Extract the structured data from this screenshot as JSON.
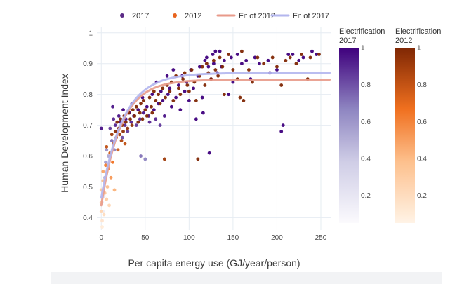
{
  "chart_data": {
    "type": "scatter",
    "xlabel": "Per capita energy use (GJ/year/person)",
    "ylabel": "Human Development Index",
    "xlim": [
      -5,
      262
    ],
    "ylim": [
      0.36,
      1.02
    ],
    "xticks": [
      0,
      50,
      100,
      150,
      200,
      250
    ],
    "yticks": [
      0.4,
      0.5,
      0.6,
      0.7,
      0.8,
      0.9,
      1.0
    ],
    "ytick_labels": [
      "0.4",
      "0.5",
      "0.6",
      "0.7",
      "0.8",
      "0.9",
      "1"
    ],
    "grid": true,
    "legend": {
      "placement": "top",
      "items": [
        {
          "label": "2017",
          "kind": "marker",
          "color": "#5b2a86"
        },
        {
          "label": "2012",
          "kind": "marker",
          "color": "#e8641e"
        },
        {
          "label": "Fit of 2012",
          "kind": "line",
          "color": "#e89a8a"
        },
        {
          "label": "Fit of 2017",
          "kind": "line",
          "color": "#b3b6ee"
        }
      ]
    },
    "colorbars": [
      {
        "title_lines": [
          "Electrification",
          "2017"
        ],
        "range": [
          0.05,
          1
        ],
        "ticks": [
          0.2,
          0.4,
          0.6,
          0.8,
          1
        ],
        "tick_labels": [
          "0.2",
          "0.4",
          "0.6",
          "0.8",
          "1"
        ],
        "colorscale": "Purples"
      },
      {
        "title_lines": [
          "Electrification",
          "2012"
        ],
        "range": [
          0.05,
          1
        ],
        "ticks": [
          0.2,
          0.4,
          0.6,
          0.8,
          1
        ],
        "tick_labels": [
          "0.2",
          "0.4",
          "0.6",
          "0.8",
          "1"
        ],
        "colorscale": "Oranges"
      }
    ],
    "fits": [
      {
        "name": "Fit of 2012",
        "color": "#e89a8a",
        "a": 0.848,
        "b": 0.408,
        "c": 0.045
      },
      {
        "name": "Fit of 2017",
        "color": "#b3b6ee",
        "a": 0.87,
        "b": 0.405,
        "c": 0.04
      }
    ],
    "series": [
      {
        "name": "2017",
        "colorscale": "Purples",
        "points": [
          [
            0,
            0.69,
            0.95
          ],
          [
            1,
            0.45,
            0.15
          ],
          [
            2,
            0.42,
            0.1
          ],
          [
            3,
            0.47,
            0.2
          ],
          [
            4,
            0.53,
            0.45
          ],
          [
            5,
            0.58,
            0.55
          ],
          [
            6,
            0.62,
            0.6
          ],
          [
            8,
            0.6,
            0.5
          ],
          [
            10,
            0.69,
            0.85
          ],
          [
            12,
            0.65,
            0.7
          ],
          [
            13,
            0.76,
            0.95
          ],
          [
            14,
            0.72,
            0.9
          ],
          [
            15,
            0.62,
            0.65
          ],
          [
            16,
            0.7,
            0.9
          ],
          [
            18,
            0.68,
            0.85
          ],
          [
            20,
            0.73,
            0.95
          ],
          [
            22,
            0.71,
            0.95
          ],
          [
            24,
            0.66,
            0.8
          ],
          [
            25,
            0.75,
            1.0
          ],
          [
            27,
            0.7,
            0.9
          ],
          [
            28,
            0.72,
            0.95
          ],
          [
            30,
            0.68,
            0.85
          ],
          [
            32,
            0.74,
            1.0
          ],
          [
            34,
            0.71,
            0.9
          ],
          [
            35,
            0.77,
            1.0
          ],
          [
            37,
            0.73,
            0.95
          ],
          [
            40,
            0.7,
            0.85
          ],
          [
            42,
            0.75,
            1.0
          ],
          [
            44,
            0.72,
            0.9
          ],
          [
            45,
            0.6,
            0.7
          ],
          [
            47,
            0.79,
            1.0
          ],
          [
            48,
            0.74,
            0.95
          ],
          [
            50,
            0.59,
            0.65
          ],
          [
            52,
            0.76,
            1.0
          ],
          [
            54,
            0.73,
            0.95
          ],
          [
            55,
            0.71,
            0.9
          ],
          [
            58,
            0.8,
            1.0
          ],
          [
            60,
            0.75,
            1.0
          ],
          [
            62,
            0.72,
            0.9
          ],
          [
            63,
            0.84,
            1.0
          ],
          [
            65,
            0.77,
            1.0
          ],
          [
            67,
            0.7,
            0.85
          ],
          [
            68,
            0.81,
            1.0
          ],
          [
            70,
            0.78,
            1.0
          ],
          [
            72,
            0.73,
            0.95
          ],
          [
            75,
            0.86,
            1.0
          ],
          [
            76,
            0.8,
            1.0
          ],
          [
            78,
            0.82,
            1.0
          ],
          [
            80,
            0.76,
            1.0
          ],
          [
            82,
            0.88,
            1.0
          ],
          [
            85,
            0.79,
            1.0
          ],
          [
            88,
            0.83,
            1.0
          ],
          [
            90,
            0.75,
            1.0
          ],
          [
            92,
            0.86,
            1.0
          ],
          [
            95,
            0.81,
            1.0
          ],
          [
            97,
            0.84,
            1.0
          ],
          [
            100,
            0.78,
            1.0
          ],
          [
            102,
            0.88,
            1.0
          ],
          [
            105,
            0.82,
            1.0
          ],
          [
            108,
            0.72,
            1.0
          ],
          [
            110,
            0.86,
            1.0
          ],
          [
            112,
            0.89,
            1.0
          ],
          [
            115,
            0.79,
            1.0
          ],
          [
            116,
            0.74,
            1.0
          ],
          [
            118,
            0.91,
            1.0
          ],
          [
            120,
            0.92,
            1.0
          ],
          [
            122,
            0.89,
            1.0
          ],
          [
            123,
            0.61,
            1.0
          ],
          [
            125,
            0.85,
            1.0
          ],
          [
            127,
            0.93,
            1.0
          ],
          [
            128,
            0.9,
            1.0
          ],
          [
            130,
            0.94,
            1.0
          ],
          [
            132,
            0.87,
            1.0
          ],
          [
            135,
            0.94,
            1.0
          ],
          [
            137,
            0.89,
            1.0
          ],
          [
            140,
            0.91,
            1.0
          ],
          [
            145,
            0.8,
            1.0
          ],
          [
            148,
            0.92,
            1.0
          ],
          [
            150,
            0.84,
            1.0
          ],
          [
            155,
            0.93,
            1.0
          ],
          [
            160,
            0.9,
            1.0
          ],
          [
            165,
            0.91,
            1.0
          ],
          [
            170,
            0.85,
            1.0
          ],
          [
            175,
            0.92,
            1.0
          ],
          [
            180,
            0.9,
            1.0
          ],
          [
            190,
            0.91,
            1.0
          ],
          [
            192,
            0.87,
            1.0
          ],
          [
            200,
            0.88,
            1.0
          ],
          [
            205,
            0.68,
            1.0
          ],
          [
            207,
            0.7,
            1.0
          ],
          [
            213,
            0.93,
            1.0
          ],
          [
            218,
            0.93,
            1.0
          ],
          [
            225,
            0.91,
            1.0
          ],
          [
            230,
            0.92,
            1.0
          ],
          [
            240,
            0.94,
            1.0
          ],
          [
            245,
            0.93,
            1.0
          ]
        ]
      },
      {
        "name": "2012",
        "colorscale": "Oranges",
        "points": [
          [
            0,
            0.42,
            0.2
          ],
          [
            0,
            0.45,
            0.25
          ],
          [
            0,
            0.49,
            0.3
          ],
          [
            1,
            0.39,
            0.1
          ],
          [
            1,
            0.37,
            0.05
          ],
          [
            2,
            0.52,
            0.35
          ],
          [
            2,
            0.55,
            0.45
          ],
          [
            3,
            0.41,
            0.15
          ],
          [
            4,
            0.48,
            0.3
          ],
          [
            5,
            0.57,
            0.6
          ],
          [
            6,
            0.46,
            0.25
          ],
          [
            6,
            0.63,
            0.8
          ],
          [
            7,
            0.5,
            0.35
          ],
          [
            8,
            0.56,
            0.6
          ],
          [
            9,
            0.44,
            0.2
          ],
          [
            10,
            0.61,
            0.75
          ],
          [
            11,
            0.53,
            0.5
          ],
          [
            12,
            0.67,
            0.9
          ],
          [
            13,
            0.58,
            0.65
          ],
          [
            14,
            0.64,
            0.8
          ],
          [
            15,
            0.49,
            0.4
          ],
          [
            16,
            0.68,
            0.95
          ],
          [
            17,
            0.66,
            0.85
          ],
          [
            18,
            0.71,
            1.0
          ],
          [
            19,
            0.62,
            0.75
          ],
          [
            20,
            0.69,
            0.95
          ],
          [
            21,
            0.67,
            0.9
          ],
          [
            22,
            0.72,
            1.0
          ],
          [
            23,
            0.65,
            0.85
          ],
          [
            24,
            0.7,
            0.95
          ],
          [
            25,
            0.68,
            0.95
          ],
          [
            26,
            0.73,
            1.0
          ],
          [
            27,
            0.64,
            0.8
          ],
          [
            28,
            0.71,
            1.0
          ],
          [
            30,
            0.69,
            0.95
          ],
          [
            31,
            0.74,
            1.0
          ],
          [
            33,
            0.72,
            1.0
          ],
          [
            35,
            0.7,
            0.95
          ],
          [
            36,
            0.75,
            1.0
          ],
          [
            38,
            0.73,
            1.0
          ],
          [
            40,
            0.76,
            1.0
          ],
          [
            42,
            0.71,
            1.0
          ],
          [
            44,
            0.74,
            1.0
          ],
          [
            45,
            0.77,
            1.0
          ],
          [
            47,
            0.72,
            1.0
          ],
          [
            48,
            0.78,
            1.0
          ],
          [
            50,
            0.75,
            1.0
          ],
          [
            52,
            0.73,
            1.0
          ],
          [
            55,
            0.79,
            1.0
          ],
          [
            57,
            0.76,
            1.0
          ],
          [
            58,
            0.74,
            1.0
          ],
          [
            60,
            0.81,
            1.0
          ],
          [
            62,
            0.78,
            1.0
          ],
          [
            65,
            0.8,
            1.0
          ],
          [
            67,
            0.77,
            1.0
          ],
          [
            70,
            0.82,
            1.0
          ],
          [
            72,
            0.59,
            0.9
          ],
          [
            73,
            0.79,
            1.0
          ],
          [
            75,
            0.83,
            1.0
          ],
          [
            78,
            0.81,
            1.0
          ],
          [
            80,
            0.84,
            1.0
          ],
          [
            82,
            0.78,
            1.0
          ],
          [
            85,
            0.86,
            1.0
          ],
          [
            88,
            0.82,
            1.0
          ],
          [
            90,
            0.8,
            1.0
          ],
          [
            93,
            0.85,
            1.0
          ],
          [
            95,
            0.87,
            1.0
          ],
          [
            98,
            0.83,
            1.0
          ],
          [
            100,
            0.81,
            1.0
          ],
          [
            103,
            0.88,
            1.0
          ],
          [
            106,
            0.84,
            1.0
          ],
          [
            108,
            0.78,
            1.0
          ],
          [
            110,
            0.59,
            1.0
          ],
          [
            112,
            0.86,
            1.0
          ],
          [
            115,
            0.89,
            1.0
          ],
          [
            118,
            0.83,
            1.0
          ],
          [
            120,
            0.9,
            1.0
          ],
          [
            122,
            0.87,
            1.0
          ],
          [
            125,
            0.85,
            1.0
          ],
          [
            128,
            0.91,
            1.0
          ],
          [
            130,
            0.88,
            1.0
          ],
          [
            133,
            0.86,
            1.0
          ],
          [
            135,
            0.92,
            1.0
          ],
          [
            138,
            0.89,
            1.0
          ],
          [
            140,
            0.8,
            1.0
          ],
          [
            145,
            0.93,
            1.0
          ],
          [
            150,
            0.88,
            1.0
          ],
          [
            155,
            0.85,
            1.0
          ],
          [
            158,
            0.79,
            1.0
          ],
          [
            160,
            0.94,
            1.0
          ],
          [
            162,
            0.78,
            1.0
          ],
          [
            168,
            0.88,
            1.0
          ],
          [
            172,
            0.84,
            1.0
          ],
          [
            178,
            0.92,
            1.0
          ],
          [
            185,
            0.9,
            1.0
          ],
          [
            195,
            0.92,
            1.0
          ],
          [
            200,
            0.89,
            1.0
          ],
          [
            205,
            0.83,
            1.0
          ],
          [
            210,
            0.91,
            1.0
          ],
          [
            215,
            0.92,
            1.0
          ],
          [
            222,
            0.9,
            1.0
          ],
          [
            228,
            0.93,
            1.0
          ],
          [
            235,
            0.85,
            1.0
          ],
          [
            238,
            0.92,
            1.0
          ],
          [
            248,
            0.93,
            1.0
          ]
        ]
      }
    ]
  }
}
